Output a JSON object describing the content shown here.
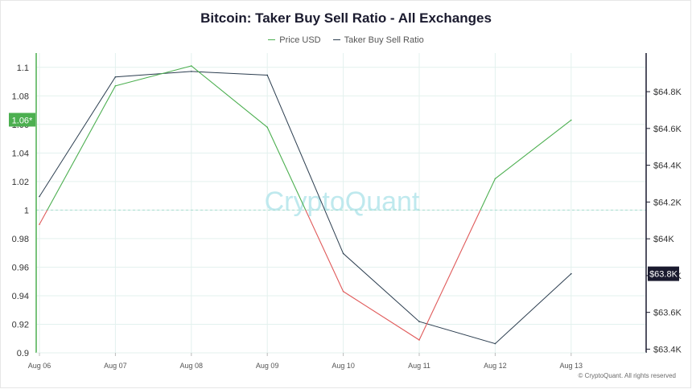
{
  "chart_data": {
    "type": "line",
    "title": "Bitcoin: Taker Buy Sell Ratio - All Exchanges",
    "watermark": "CryptoQuant",
    "copyright": "© CryptoQuant. All rights reserved",
    "categories": [
      "Aug 06",
      "Aug 07",
      "Aug 08",
      "Aug 09",
      "Aug 10",
      "Aug 11",
      "Aug 12",
      "Aug 13"
    ],
    "series": [
      {
        "name": "Price USD",
        "axis": "right",
        "color": "#2c3e50",
        "values": [
          64230,
          64880,
          64910,
          64890,
          63920,
          63550,
          63430,
          63810
        ]
      },
      {
        "name": "Taker Buy Sell Ratio",
        "axis": "left",
        "color_above": "#4caf50",
        "color_below": "#e05a5a",
        "baseline": 1,
        "values": [
          0.99,
          1.087,
          1.101,
          1.058,
          0.943,
          0.909,
          1.022,
          1.063
        ]
      }
    ],
    "left_axis": {
      "min": 0.9,
      "max": 1.11,
      "ticks": [
        "0.9",
        "0.92",
        "0.94",
        "0.96",
        "0.98",
        "1",
        "1.02",
        "1.04",
        "1.06",
        "1.08",
        "1.1"
      ]
    },
    "right_axis": {
      "min": 63380,
      "max": 65010,
      "ticks": [
        "$63.4K",
        "$63.6K",
        "$63.8K",
        "$64K",
        "$64.2K",
        "$64.4K",
        "$64.6K",
        "$64.8K"
      ]
    },
    "current_left_label": "1.06*",
    "current_right_label": "$63.8K",
    "grid": true,
    "legend_position": "top-center"
  },
  "colors": {
    "left_axis": "#4caf50",
    "right_axis": "#1a1a2e",
    "grid": "#e3f1ee",
    "baseline": "#a8ddd0",
    "watermark": "#bfe9ee"
  }
}
